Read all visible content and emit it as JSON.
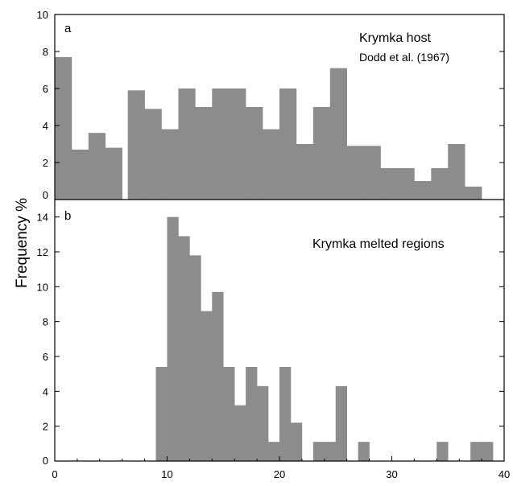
{
  "colors": {
    "bar_fill": "#8c8c8c",
    "axis": "#000000",
    "background": "#ffffff"
  },
  "figure": {
    "ylabel": "Frequency %"
  },
  "chart_data": [
    {
      "type": "bar",
      "panel": "a",
      "bin_width": 1.5,
      "x_bin_starts": [
        0,
        1.5,
        3,
        4.5,
        6.5,
        8,
        9.5,
        11,
        12.5,
        14,
        15.5,
        17,
        18.5,
        20,
        21.5,
        23,
        24.5,
        26,
        27.5,
        29,
        30.5,
        32,
        33.5,
        35,
        36.5
      ],
      "values": [
        7.7,
        2.7,
        3.6,
        2.8,
        5.9,
        4.9,
        3.8,
        6.0,
        5.0,
        6.0,
        6.0,
        5.0,
        3.8,
        6.0,
        3.0,
        5.0,
        7.1,
        2.9,
        2.9,
        1.7,
        1.7,
        1.0,
        1.7,
        3.0,
        0.7
      ],
      "ylim": [
        0,
        10
      ],
      "yticks": [
        0,
        2,
        4,
        6,
        8,
        10
      ],
      "xlim": [
        0,
        40
      ],
      "annotation": [
        "Krymka host",
        "Dodd et al. (1967)"
      ]
    },
    {
      "type": "bar",
      "panel": "b",
      "bin_width": 1,
      "x_bin_starts": [
        9,
        10,
        11,
        12,
        13,
        14,
        15,
        16,
        17,
        18,
        19,
        20,
        21,
        22,
        23,
        24,
        25,
        26,
        27,
        28,
        29,
        30,
        31,
        32,
        33,
        34,
        35,
        36,
        37,
        38
      ],
      "values": [
        5.4,
        14.0,
        12.9,
        11.8,
        8.6,
        9.7,
        5.4,
        3.2,
        5.4,
        4.3,
        1.1,
        5.4,
        2.2,
        0,
        1.1,
        1.1,
        4.3,
        0,
        1.1,
        0,
        0,
        0,
        0,
        0,
        0,
        1.1,
        0,
        0,
        1.1,
        1.1
      ],
      "ylim": [
        0,
        15
      ],
      "yticks": [
        0,
        2,
        4,
        6,
        8,
        10,
        12,
        14
      ],
      "xlim": [
        0,
        40
      ],
      "xticks": [
        0,
        10,
        20,
        30,
        40
      ],
      "annotation": [
        "Krymka melted regions"
      ]
    }
  ]
}
